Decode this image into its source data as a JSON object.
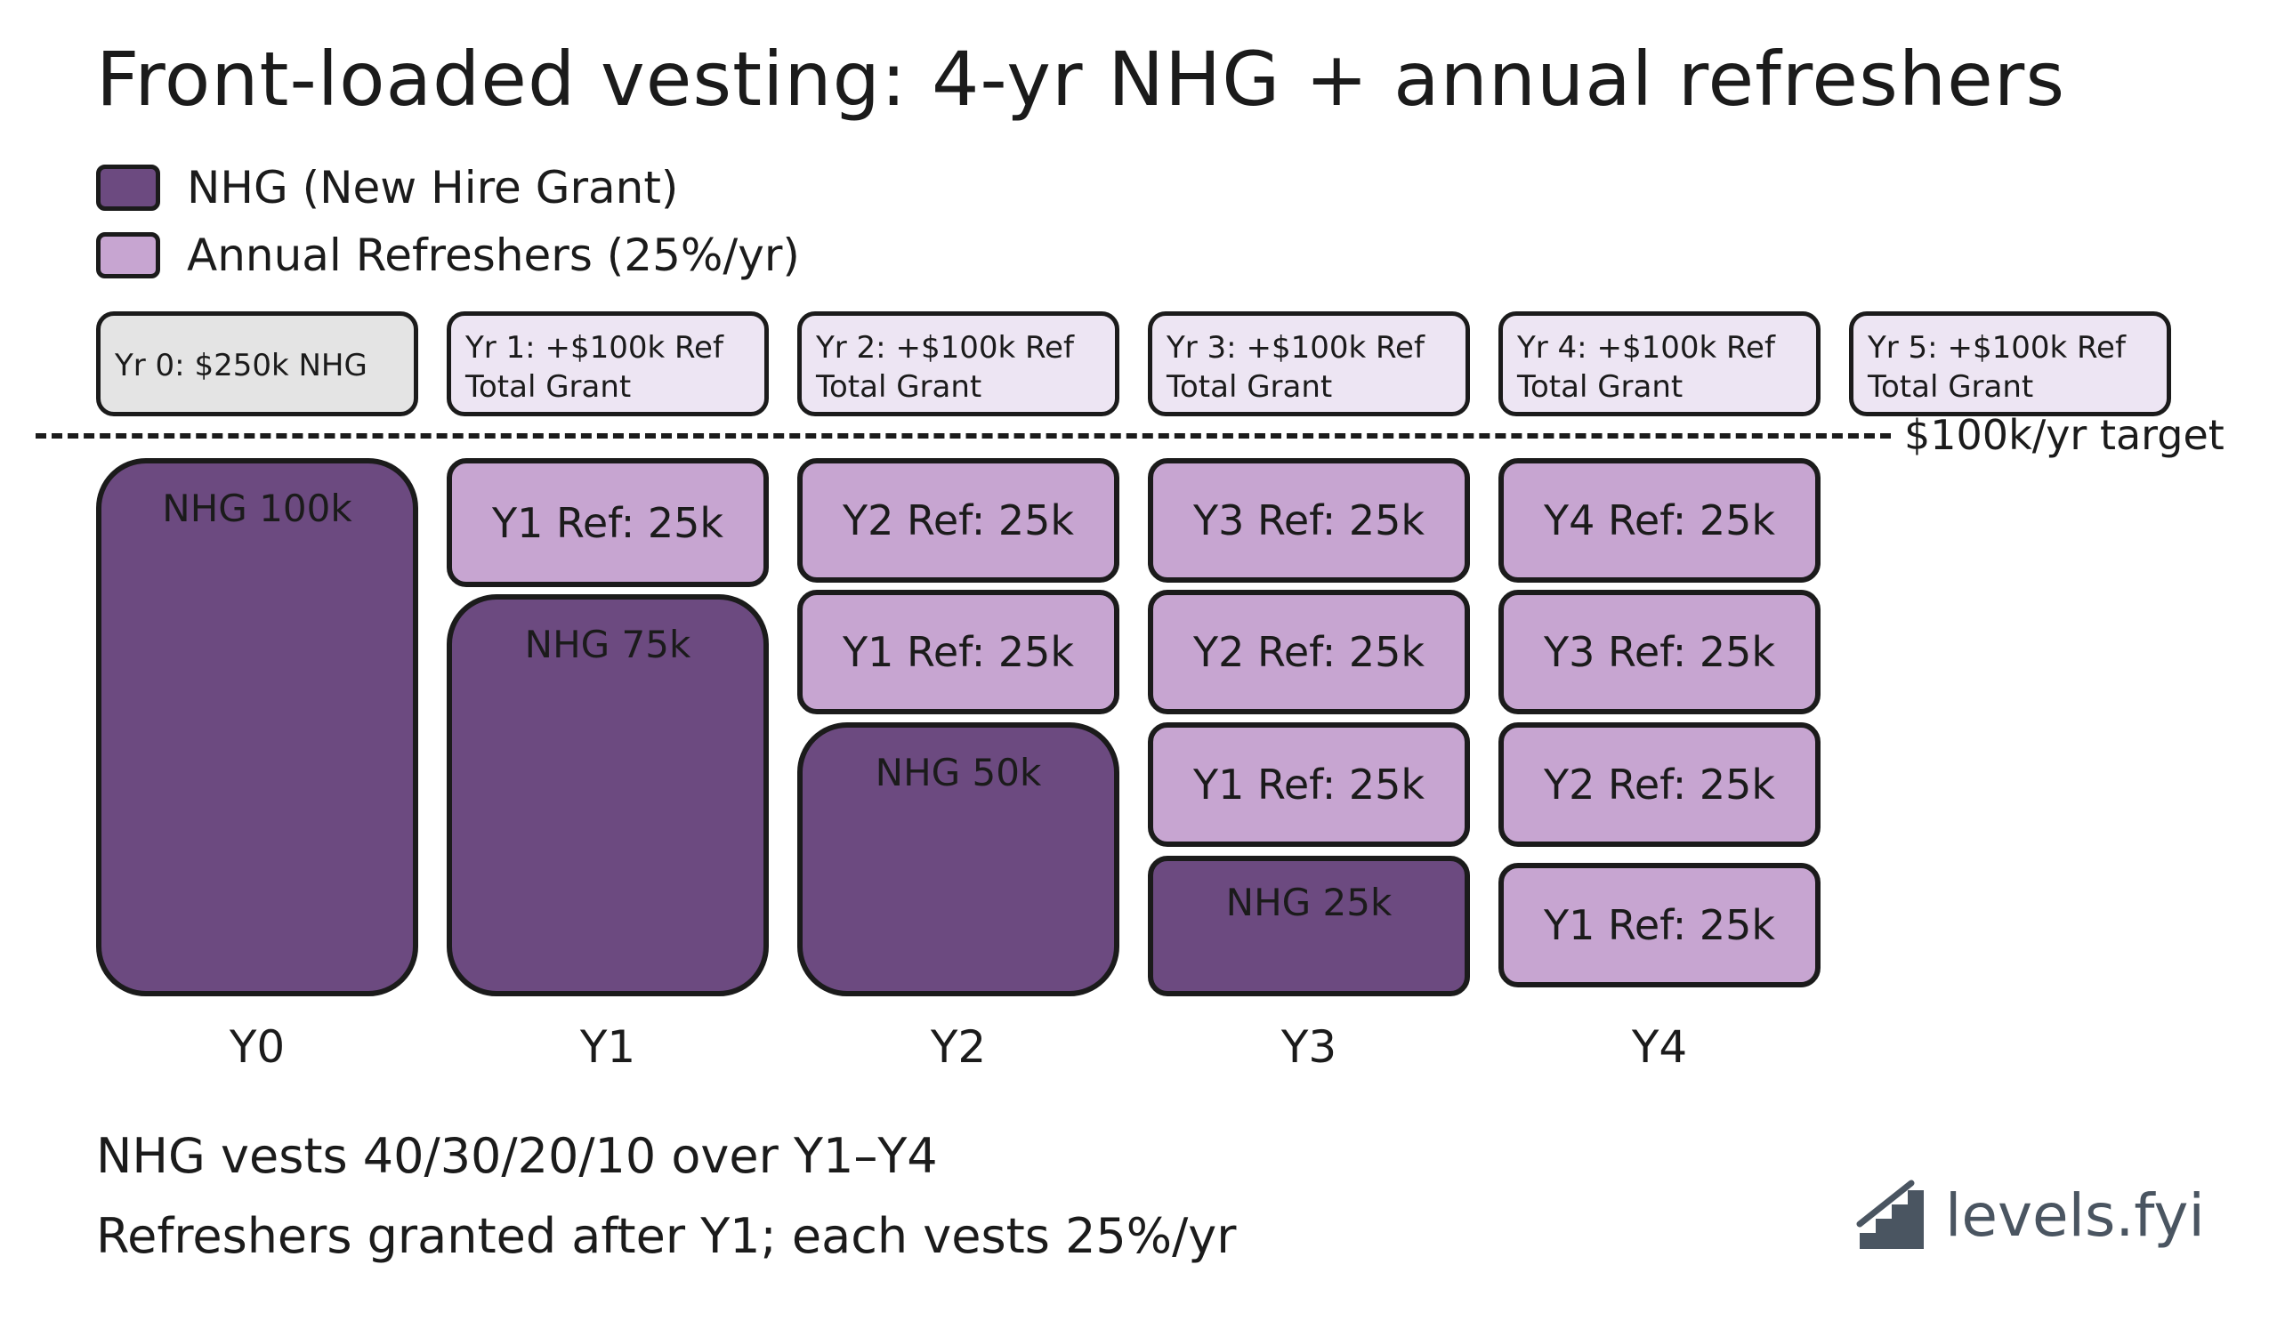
{
  "title": "Front-loaded vesting: 4-yr NHG + annual refreshers",
  "colors": {
    "nhg": "#6c4a80",
    "refresher": "#c7a5d1",
    "header_gray": "#e4e4e4",
    "header_lavender": "#ede5f3",
    "logo": "#4a5561"
  },
  "legend": [
    {
      "label": "NHG (New Hire Grant)",
      "color": "#6c4a80"
    },
    {
      "label": "Annual Refreshers (25%/yr)",
      "color": "#c7a5d1"
    }
  ],
  "headers": [
    {
      "line1": "Yr 0: $250k NHG",
      "line2": ""
    },
    {
      "line1": "Yr 1: +$100k Ref",
      "line2": "Total Grant"
    },
    {
      "line1": "Yr 2: +$100k Ref",
      "line2": "Total Grant"
    },
    {
      "line1": "Yr 3: +$100k Ref",
      "line2": "Total Grant"
    },
    {
      "line1": "Yr 4: +$100k Ref",
      "line2": "Total Grant"
    },
    {
      "line1": "Yr 5: +$100k Ref",
      "line2": "Total Grant"
    }
  ],
  "target": {
    "label": "$100k/yr target"
  },
  "columns": [
    {
      "x_label": "Y0",
      "nhg_label": "NHG 100k",
      "refreshers": []
    },
    {
      "x_label": "Y1",
      "nhg_label": "NHG 75k",
      "refreshers": [
        "Y1 Ref: 25k"
      ]
    },
    {
      "x_label": "Y2",
      "nhg_label": "NHG 50k",
      "refreshers": [
        "Y2 Ref: 25k",
        "Y1 Ref: 25k"
      ]
    },
    {
      "x_label": "Y3",
      "nhg_label": "NHG 25k",
      "refreshers": [
        "Y3 Ref: 25k",
        "Y2 Ref: 25k",
        "Y1 Ref: 25k"
      ]
    },
    {
      "x_label": "Y4",
      "nhg_label": "",
      "refreshers": [
        "Y4 Ref: 25k",
        "Y3 Ref: 25k",
        "Y2 Ref: 25k",
        "Y1 Ref: 25k"
      ]
    }
  ],
  "footnotes": [
    "NHG vests 40/30/20/10 over Y1–Y4",
    "Refreshers granted after Y1; each vests 25%/yr"
  ],
  "logo": {
    "text": "levels.fyi",
    "icon": "stairs-logo-icon"
  }
}
